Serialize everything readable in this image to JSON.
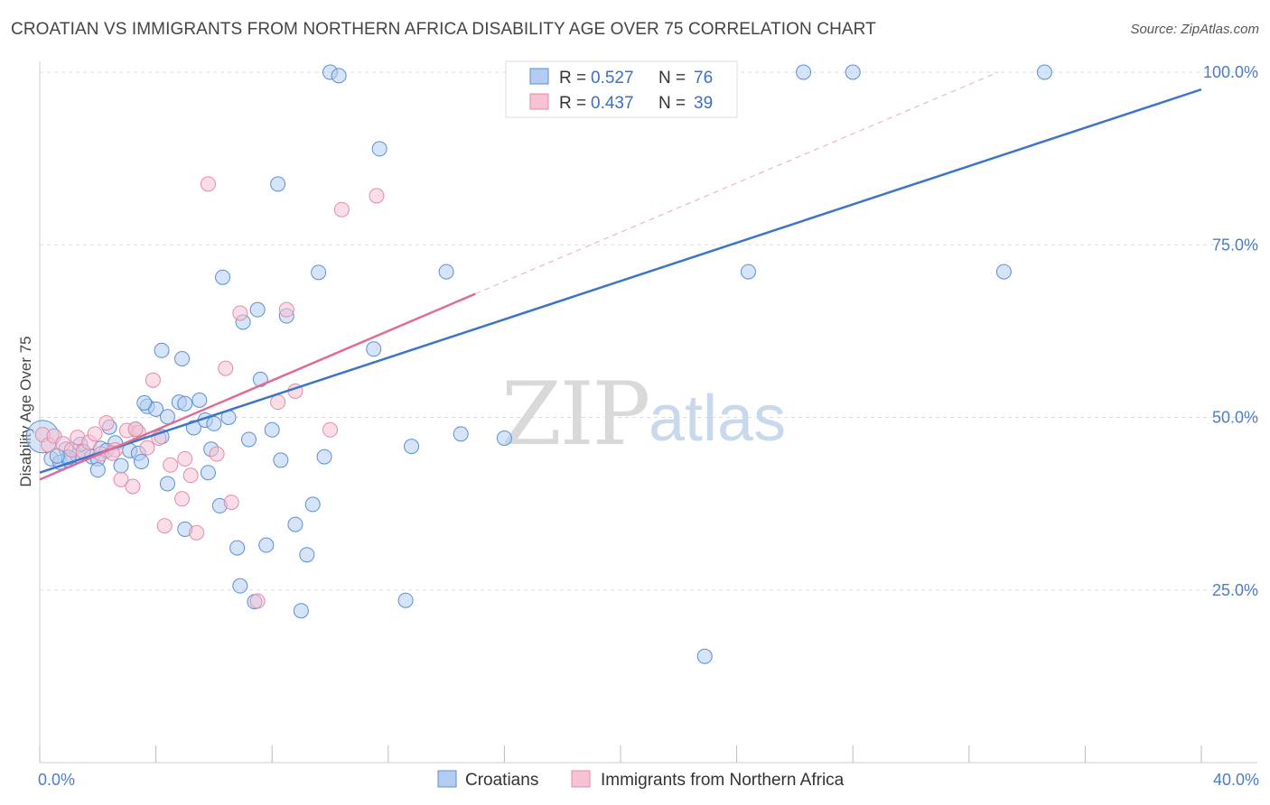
{
  "title": "CROATIAN VS IMMIGRANTS FROM NORTHERN AFRICA DISABILITY AGE OVER 75 CORRELATION CHART",
  "source": "Source: ZipAtlas.com",
  "watermark": {
    "part1": "ZIP",
    "part2": "atlas"
  },
  "colors": {
    "blue_fill": "#b3cdf0",
    "blue_stroke": "#5b8fd6",
    "blue_line": "#3a75c9",
    "pink_fill": "#f6c3d3",
    "pink_stroke": "#e58aa8",
    "pink_line": "#e06c94",
    "grid": "#dddddd",
    "tick_text": "#4a7cc9"
  },
  "chart_data": {
    "type": "scatter",
    "xlabel": "",
    "ylabel": "Disability Age Over 75",
    "xlim": [
      0,
      40
    ],
    "ylim": [
      0,
      105
    ],
    "x_tick_labels": [
      {
        "value": 0,
        "label": "0.0%"
      },
      {
        "value": 40,
        "label": "40.0%"
      }
    ],
    "y_tick_labels": [
      {
        "value": 25,
        "label": "25.0%"
      },
      {
        "value": 50,
        "label": "50.0%"
      },
      {
        "value": 75,
        "label": "75.0%"
      },
      {
        "value": 100,
        "label": "100.0%"
      }
    ],
    "legend": {
      "placement": "top-center",
      "entries": [
        {
          "r_label": "R =",
          "r_value": "0.527",
          "n_label": "N =",
          "n_value": "76"
        },
        {
          "r_label": "R =",
          "r_value": "0.437",
          "n_label": "N =",
          "n_value": "39"
        }
      ]
    },
    "series": [
      {
        "name": "Croatians",
        "color": "#b3cdf0",
        "points": [
          [
            0.1,
            47.2
          ],
          [
            0.4,
            44.0
          ],
          [
            0.7,
            43.5
          ],
          [
            0.9,
            45.4
          ],
          [
            1.0,
            43.8
          ],
          [
            1.3,
            44.5
          ],
          [
            1.5,
            45.1
          ],
          [
            1.8,
            44.3
          ],
          [
            2.0,
            44.0
          ],
          [
            2.1,
            45.5
          ],
          [
            2.4,
            48.6
          ],
          [
            2.6,
            46.3
          ],
          [
            2.8,
            43.0
          ],
          [
            3.1,
            45.2
          ],
          [
            3.3,
            48.3
          ],
          [
            3.4,
            44.8
          ],
          [
            3.5,
            43.6
          ],
          [
            3.7,
            51.6
          ],
          [
            4.0,
            51.2
          ],
          [
            4.2,
            47.2
          ],
          [
            4.4,
            50.1
          ],
          [
            4.8,
            52.2
          ],
          [
            4.9,
            58.5
          ],
          [
            5.0,
            52.0
          ],
          [
            5.3,
            48.5
          ],
          [
            5.5,
            52.5
          ],
          [
            5.7,
            49.6
          ],
          [
            5.8,
            42.0
          ],
          [
            6.0,
            49.1
          ],
          [
            6.3,
            70.3
          ],
          [
            6.5,
            50.0
          ],
          [
            6.8,
            31.1
          ],
          [
            7.0,
            63.8
          ],
          [
            7.2,
            46.8
          ],
          [
            7.6,
            55.5
          ],
          [
            7.8,
            31.5
          ],
          [
            8.0,
            48.2
          ],
          [
            8.3,
            43.8
          ],
          [
            8.5,
            64.7
          ],
          [
            8.8,
            34.5
          ],
          [
            9.0,
            22.0
          ],
          [
            9.4,
            37.4
          ],
          [
            9.6,
            71.0
          ],
          [
            9.8,
            44.3
          ],
          [
            10.0,
            100.0
          ],
          [
            11.7,
            88.9
          ],
          [
            11.5,
            59.9
          ],
          [
            12.6,
            23.5
          ],
          [
            12.8,
            45.8
          ],
          [
            14.0,
            71.1
          ],
          [
            14.5,
            47.6
          ],
          [
            16.0,
            47.0
          ],
          [
            22.9,
            15.4
          ],
          [
            23.3,
            95.1
          ],
          [
            24.4,
            71.1
          ],
          [
            26.3,
            100.0
          ],
          [
            28.0,
            100.0
          ],
          [
            33.2,
            71.1
          ],
          [
            34.6,
            100.0
          ],
          [
            10.3,
            99.5
          ],
          [
            7.5,
            65.6
          ],
          [
            5.0,
            33.8
          ],
          [
            4.2,
            59.7
          ],
          [
            6.2,
            37.2
          ],
          [
            8.2,
            83.8
          ],
          [
            7.4,
            23.3
          ],
          [
            6.9,
            25.6
          ],
          [
            3.6,
            52.1
          ],
          [
            2.0,
            42.4
          ],
          [
            1.0,
            44.2
          ],
          [
            0.6,
            44.4
          ],
          [
            1.4,
            46.1
          ],
          [
            2.3,
            45.2
          ],
          [
            4.4,
            40.4
          ],
          [
            5.9,
            45.4
          ],
          [
            9.2,
            30.1
          ]
        ]
      },
      {
        "name": "Immigrants from Northern Africa",
        "color": "#f6c3d3",
        "points": [
          [
            0.1,
            47.5
          ],
          [
            0.3,
            46.0
          ],
          [
            0.5,
            47.3
          ],
          [
            0.8,
            46.2
          ],
          [
            1.1,
            45.3
          ],
          [
            1.3,
            47.1
          ],
          [
            1.5,
            45.0
          ],
          [
            1.7,
            46.4
          ],
          [
            1.9,
            47.6
          ],
          [
            2.1,
            44.7
          ],
          [
            2.3,
            49.2
          ],
          [
            2.6,
            45.3
          ],
          [
            2.8,
            41.0
          ],
          [
            3.0,
            48.1
          ],
          [
            3.2,
            40.0
          ],
          [
            3.4,
            47.8
          ],
          [
            3.7,
            45.6
          ],
          [
            3.9,
            55.4
          ],
          [
            4.3,
            34.3
          ],
          [
            4.5,
            43.1
          ],
          [
            4.9,
            38.2
          ],
          [
            5.2,
            41.6
          ],
          [
            5.4,
            33.3
          ],
          [
            5.8,
            83.8
          ],
          [
            6.1,
            44.7
          ],
          [
            6.4,
            57.1
          ],
          [
            6.6,
            37.7
          ],
          [
            6.9,
            65.1
          ],
          [
            7.5,
            23.4
          ],
          [
            8.2,
            52.2
          ],
          [
            8.5,
            65.6
          ],
          [
            8.8,
            53.8
          ],
          [
            10.0,
            48.2
          ],
          [
            10.4,
            80.1
          ],
          [
            11.6,
            82.1
          ],
          [
            3.3,
            48.3
          ],
          [
            2.5,
            44.8
          ],
          [
            4.1,
            47.0
          ],
          [
            5.0,
            44.0
          ]
        ]
      }
    ],
    "trendlines": [
      {
        "series": "Croatians",
        "x": [
          0,
          40
        ],
        "y": [
          42.0,
          97.5
        ],
        "style": "solid"
      },
      {
        "series": "Immigrants from Northern Africa",
        "x": [
          0,
          15.0
        ],
        "y": [
          41.0,
          67.9
        ],
        "style": "solid"
      },
      {
        "series": "Immigrants from Northern Africa",
        "x": [
          15.0,
          33.0
        ],
        "y": [
          67.9,
          100.0
        ],
        "style": "dashed"
      }
    ]
  }
}
